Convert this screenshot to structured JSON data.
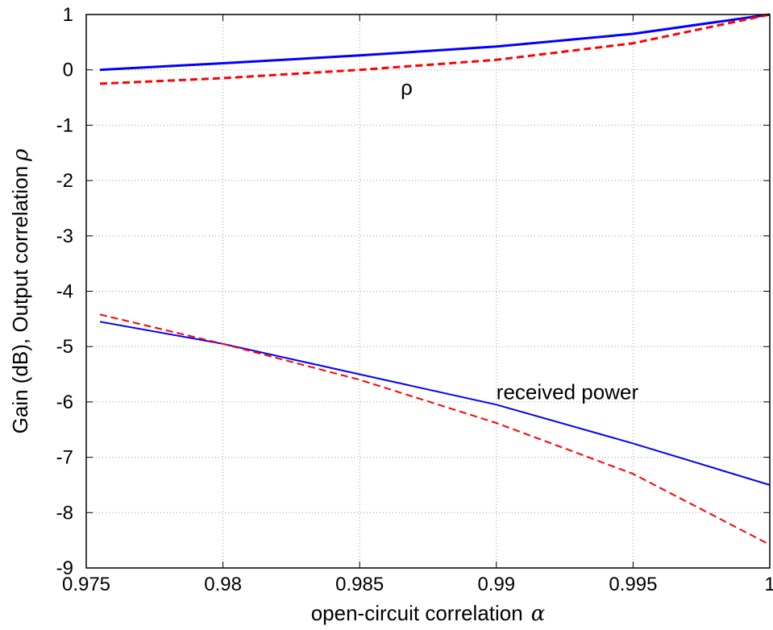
{
  "chart_data": {
    "type": "line",
    "xlabel": "open-circuit correlation",
    "xlabel_symbol": "α",
    "ylabel": "Gain (dB), Output correlation",
    "ylabel_symbol": "ρ",
    "xlim": [
      0.975,
      1.0
    ],
    "ylim": [
      -9,
      1
    ],
    "xticks": [
      0.975,
      0.98,
      0.985,
      0.99,
      0.995,
      1
    ],
    "xtick_labels": [
      "0.975",
      "0.98",
      "0.985",
      "0.99",
      "0.995",
      "1"
    ],
    "yticks": [
      1,
      0,
      -1,
      -2,
      -3,
      -4,
      -5,
      -6,
      -7,
      -8,
      -9
    ],
    "ytick_labels": [
      "1",
      "0",
      "-1",
      "-2",
      "-3",
      "-4",
      "-5",
      "-6",
      "-7",
      "-8",
      "-9"
    ],
    "grid": true,
    "series": [
      {
        "color": "#0000ff",
        "style": "solid",
        "width": 3,
        "x": [
          0.9755,
          0.98,
          0.985,
          0.99,
          0.995,
          1.0
        ],
        "y": [
          0.0,
          0.12,
          0.26,
          0.42,
          0.65,
          1.0
        ]
      },
      {
        "color": "#ff0000",
        "style": "dashed",
        "width": 3,
        "x": [
          0.9755,
          0.98,
          0.985,
          0.99,
          0.995,
          1.0
        ],
        "y": [
          -0.25,
          -0.15,
          0.0,
          0.18,
          0.48,
          1.0
        ]
      },
      {
        "color": "#0000ff",
        "style": "solid",
        "width": 2,
        "x": [
          0.9755,
          0.98,
          0.985,
          0.99,
          0.995,
          1.0
        ],
        "y": [
          -4.55,
          -4.95,
          -5.5,
          -6.05,
          -6.75,
          -7.5
        ]
      },
      {
        "color": "#ff0000",
        "style": "dashed",
        "width": 2,
        "x": [
          0.9755,
          0.98,
          0.985,
          0.99,
          0.995,
          1.0
        ],
        "y": [
          -4.42,
          -4.95,
          -5.6,
          -6.38,
          -7.3,
          -8.58
        ]
      }
    ],
    "annotations": [
      {
        "text": "ρ",
        "x": 0.9865,
        "y": -0.45
      },
      {
        "text": "received power",
        "x": 0.99,
        "y": -5.95
      }
    ]
  }
}
